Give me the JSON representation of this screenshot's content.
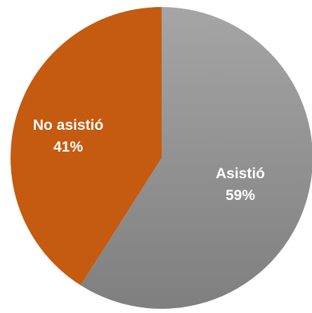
{
  "chart_data": {
    "type": "pie",
    "slices": [
      {
        "label": "Asistió",
        "percent_label": "59%",
        "value": 59,
        "color": "#8f8f8f"
      },
      {
        "label": "No asistió",
        "percent_label": "41%",
        "value": 41,
        "color": "#c55a11"
      }
    ],
    "start": "12 o'clock",
    "direction": "clockwise"
  }
}
